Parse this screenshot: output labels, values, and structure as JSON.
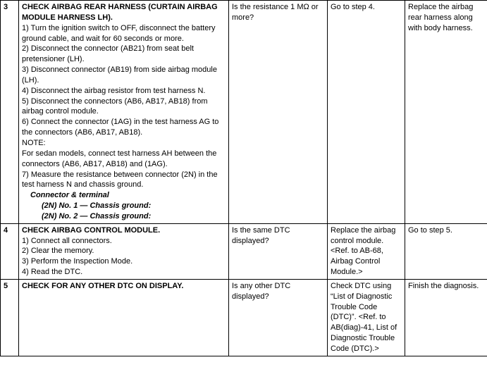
{
  "rows": [
    {
      "num": "3",
      "title": "CHECK AIRBAG REAR HARNESS (CURTAIN AIRBAG MODULE HARNESS LH).",
      "steps": [
        "1)   Turn the ignition switch to OFF, disconnect the battery ground cable, and wait for 60 seconds or more.",
        "2)   Disconnect the connector (AB21) from seat belt pretensioner (LH).",
        "3)   Disconnect connector (AB19) from side airbag module (LH).",
        "4)   Disconnect the airbag resistor from test harness N.",
        "5)   Disconnect the connectors (AB6, AB17, AB18) from airbag control module.",
        "6)   Connect the connector (1AG) in the test harness AG to the connectors (AB6, AB17, AB18)."
      ],
      "note_label": "NOTE:",
      "note_body": "For sedan models, connect test harness AH between the connectors (AB6, AB17, AB18) and (1AG).",
      "steps_after": [
        "7)   Measure the resistance between connector (2N) in the test harness N and chassis ground."
      ],
      "conn_label": "Connector & terminal",
      "conn_lines": [
        "(2N) No. 1 — Chassis ground:",
        "(2N) No. 2 — Chassis ground:"
      ],
      "check": "Is the resistance 1 MΩ or more?",
      "yes": "Go to step 4.",
      "no": "Replace the airbag rear harness along with body harness."
    },
    {
      "num": "4",
      "title": "CHECK AIRBAG CONTROL MODULE.",
      "steps": [
        "1)   Connect all connectors.",
        "2)   Clear the memory.",
        "3)   Perform the Inspection Mode.",
        "4)   Read the DTC."
      ],
      "check": "Is the same DTC displayed?",
      "yes": "Replace the airbag control module. <Ref. to AB-68, Airbag Control Module.>",
      "no": "Go to step 5."
    },
    {
      "num": "5",
      "title": "CHECK FOR ANY OTHER DTC ON DISPLAY.",
      "steps": [],
      "check": "Is any other DTC displayed?",
      "yes": "Check DTC using “List of Diagnostic Trouble Code (DTC)”. <Ref. to AB(diag)-41, List of Diagnostic Trouble Code (DTC).>",
      "no": "Finish the diagnosis."
    }
  ]
}
